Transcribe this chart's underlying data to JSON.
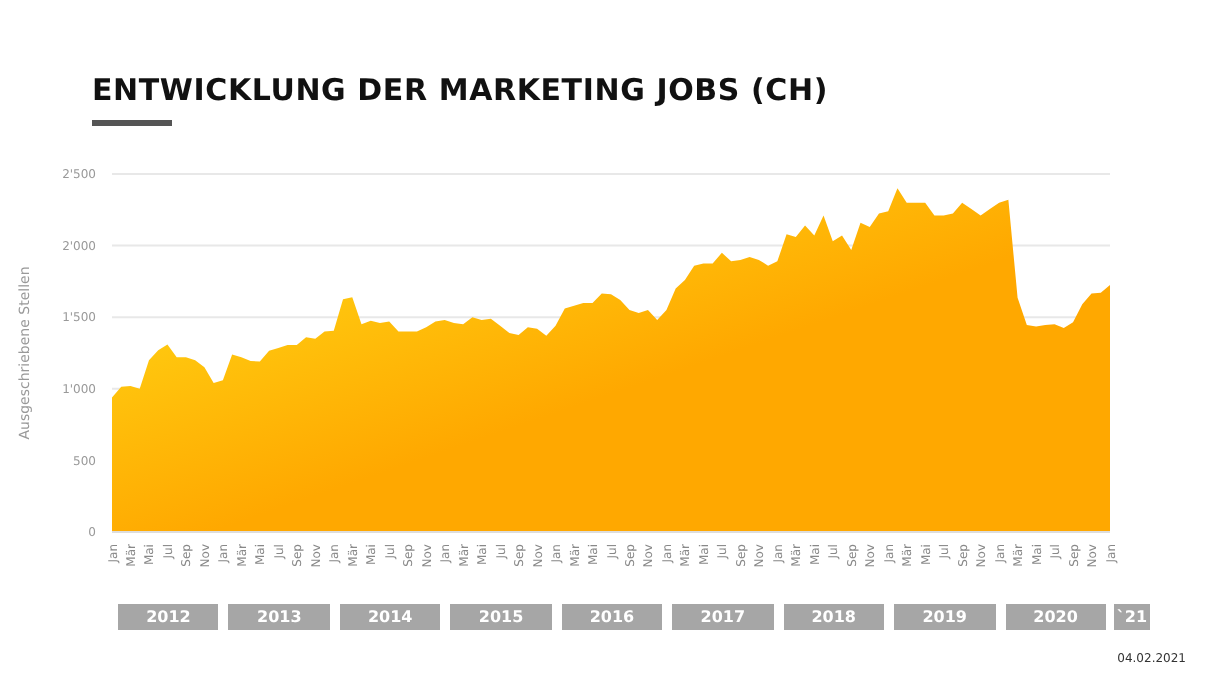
{
  "chart_data": {
    "type": "area",
    "title": "ENTWICKLUNG DER MARKETING JOBS (CH)",
    "ylabel": "Ausgeschriebene Stellen",
    "categories": [
      "Jan",
      null,
      "Mär",
      null,
      "Mai",
      null,
      "Jul",
      null,
      "Sep",
      null,
      "Nov",
      null,
      "Jan",
      null,
      "Mär",
      null,
      "Mai",
      null,
      "Jul",
      null,
      "Sep",
      null,
      "Nov",
      null,
      "Jan",
      null,
      "Mär",
      null,
      "Mai",
      null,
      "Jul",
      null,
      "Sep",
      null,
      "Nov",
      null,
      "Jan",
      null,
      "Mär",
      null,
      "Mai",
      null,
      "Jul",
      null,
      "Sep",
      null,
      "Nov",
      null,
      "Jan",
      null,
      "Mär",
      null,
      "Mai",
      null,
      "Jul",
      null,
      "Sep",
      null,
      "Nov",
      null,
      "Jan",
      null,
      "Mär",
      null,
      "Mai",
      null,
      "Jul",
      null,
      "Sep",
      null,
      "Nov",
      null,
      "Jan",
      null,
      "Mär",
      null,
      "Mai",
      null,
      "Jul",
      null,
      "Sep",
      null,
      "Nov",
      null,
      "Jan",
      null,
      "Mär",
      null,
      "Mai",
      null,
      "Jul",
      null,
      "Sep",
      null,
      "Nov",
      null,
      "Jan",
      null,
      "Mär",
      null,
      "Mai",
      null,
      "Jul",
      null,
      "Sep",
      null,
      "Nov",
      null,
      "Jan"
    ],
    "series": [
      {
        "color": "#ffa800",
        "values": [
          940,
          1015,
          1020,
          1000,
          1200,
          1270,
          1310,
          1220,
          1220,
          1200,
          1150,
          1040,
          1060,
          1240,
          1220,
          1195,
          1190,
          1265,
          1285,
          1305,
          1305,
          1360,
          1350,
          1400,
          1405,
          1625,
          1640,
          1450,
          1475,
          1460,
          1470,
          1400,
          1400,
          1400,
          1430,
          1470,
          1480,
          1460,
          1450,
          1500,
          1480,
          1490,
          1440,
          1390,
          1375,
          1430,
          1420,
          1370,
          1440,
          1560,
          1580,
          1600,
          1600,
          1665,
          1660,
          1620,
          1550,
          1530,
          1550,
          1480,
          1550,
          1700,
          1760,
          1860,
          1875,
          1875,
          1950,
          1890,
          1900,
          1920,
          1900,
          1860,
          1890,
          2080,
          2060,
          2140,
          2070,
          2210,
          2030,
          2070,
          1970,
          2160,
          2130,
          2225,
          2240,
          2400,
          2300,
          2300,
          2300,
          2210,
          2210,
          2225,
          2300,
          2255,
          2210,
          2255,
          2300,
          2320,
          1635,
          1445,
          1435,
          1445,
          1450,
          1425,
          1465,
          1590,
          1665,
          1670,
          1725
        ]
      }
    ],
    "ylim": [
      0,
      2500
    ],
    "yticks": [
      0,
      500,
      {
        "value": 1000,
        "label": "1'000"
      },
      {
        "value": 1500,
        "label": "1'500"
      },
      {
        "value": 2000,
        "label": "2'000"
      },
      {
        "value": 2500,
        "label": "2'500"
      }
    ],
    "grid": "y",
    "legend": false,
    "annotations": [
      "2012",
      "2013",
      "2014",
      "2015",
      "2016",
      "2017",
      "2018",
      "2019",
      "2020",
      "`21",
      "04.02.2021"
    ]
  }
}
